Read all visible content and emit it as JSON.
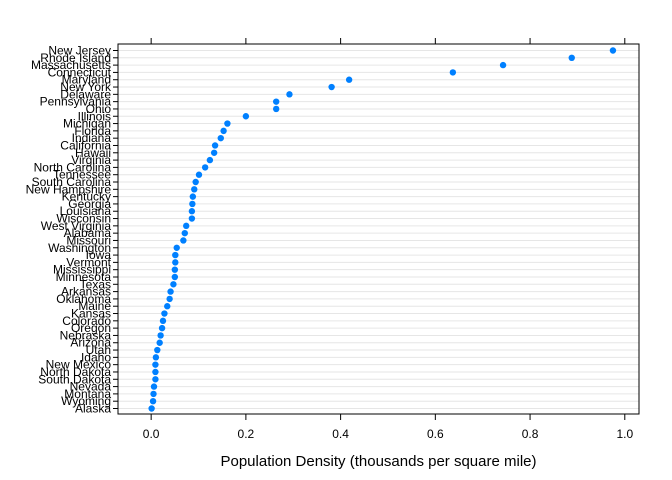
{
  "chart_data": {
    "type": "scatter",
    "subtype": "dotplot",
    "title": "",
    "xlabel": "Population Density (thousands per square mile)",
    "ylabel": "",
    "xlim": [
      -0.07,
      1.03
    ],
    "x_ticks": [
      0.0,
      0.2,
      0.4,
      0.6,
      0.8,
      1.0
    ],
    "x_tick_labels": [
      "0.0",
      "0.2",
      "0.4",
      "0.6",
      "0.8",
      "1.0"
    ],
    "grid": true,
    "point_color": "#0080ff",
    "grid_color": "#e6e6e6",
    "categories": [
      "New Jersey",
      "Rhode Island",
      "Massachusetts",
      "Connecticut",
      "Maryland",
      "New York",
      "Delaware",
      "Pennsylvania",
      "Ohio",
      "Illinois",
      "Michigan",
      "Florida",
      "Indiana",
      "California",
      "Hawaii",
      "Virginia",
      "North Carolina",
      "Tennessee",
      "South Carolina",
      "New Hampshire",
      "Kentucky",
      "Georgia",
      "Louisiana",
      "Wisconsin",
      "West Virginia",
      "Alabama",
      "Missouri",
      "Washington",
      "Iowa",
      "Vermont",
      "Mississippi",
      "Minnesota",
      "Texas",
      "Arkansas",
      "Oklahoma",
      "Maine",
      "Kansas",
      "Colorado",
      "Oregon",
      "Nebraska",
      "Arizona",
      "Utah",
      "Idaho",
      "New Mexico",
      "North Dakota",
      "South Dakota",
      "Nevada",
      "Montana",
      "Wyoming",
      "Alaska"
    ],
    "values": [
      0.975,
      0.888,
      0.743,
      0.637,
      0.418,
      0.381,
      0.292,
      0.264,
      0.264,
      0.2,
      0.161,
      0.153,
      0.147,
      0.135,
      0.133,
      0.124,
      0.114,
      0.101,
      0.094,
      0.091,
      0.088,
      0.087,
      0.086,
      0.086,
      0.074,
      0.071,
      0.068,
      0.054,
      0.051,
      0.051,
      0.05,
      0.05,
      0.047,
      0.041,
      0.039,
      0.034,
      0.028,
      0.025,
      0.023,
      0.02,
      0.018,
      0.013,
      0.01,
      0.009,
      0.009,
      0.009,
      0.006,
      0.005,
      0.004,
      0.001
    ]
  }
}
